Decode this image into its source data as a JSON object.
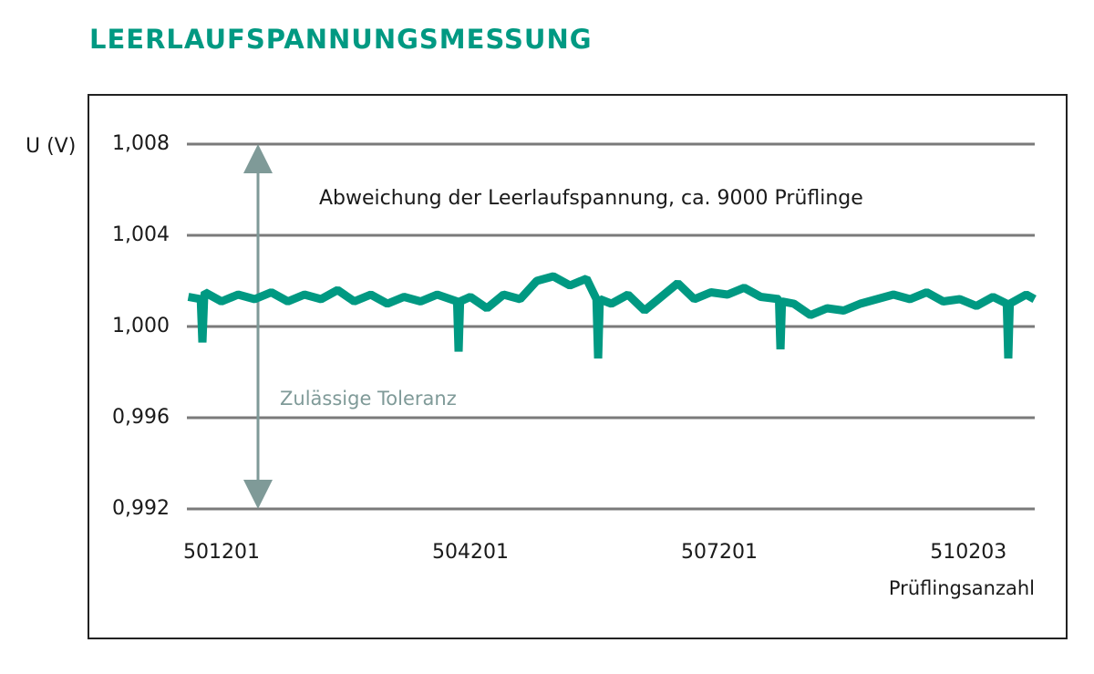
{
  "chart_data": {
    "type": "line",
    "title": "LEERLAUFSPANNUNGSMESSUNG",
    "y_label": "U (V)",
    "x_label": "Prüflingsanzahl",
    "annotation": "Abweichung der Leerlaufspannung, ca. 9000 Prüflinge",
    "tolerance_label": "Zulässige Toleranz",
    "color": "#009982",
    "tolerance_color": "#7f9a98",
    "grid": true,
    "xlim": [
      500783,
      511003
    ],
    "xticks": [
      501201,
      504201,
      507201,
      510203
    ],
    "ylim": [
      0.992,
      1.008
    ],
    "yticks": [
      {
        "value": 0.992,
        "label": "0,992"
      },
      {
        "value": 0.996,
        "label": "0,996"
      },
      {
        "value": 1.0,
        "label": "1,000"
      },
      {
        "value": 1.004,
        "label": "1,004"
      },
      {
        "value": 1.008,
        "label": "1,008"
      }
    ],
    "x": [
      500800,
      500950,
      500970,
      500990,
      501000,
      501200,
      501400,
      501600,
      501800,
      502000,
      502200,
      502400,
      502600,
      502800,
      503000,
      503200,
      503400,
      503600,
      503800,
      504040,
      504058,
      504076,
      504200,
      504400,
      504600,
      504800,
      505000,
      505200,
      505400,
      505600,
      505720,
      505740,
      505760,
      505900,
      506100,
      506300,
      506500,
      506700,
      506900,
      507100,
      507300,
      507500,
      507700,
      507920,
      507938,
      507956,
      508100,
      508300,
      508500,
      508700,
      508900,
      509100,
      509300,
      509500,
      509700,
      509900,
      510100,
      510300,
      510500,
      510666,
      510684,
      510702,
      510900,
      511000
    ],
    "values": [
      1.0013,
      1.0012,
      0.9993,
      1.0012,
      1.0015,
      1.0011,
      1.0014,
      1.0012,
      1.0015,
      1.0011,
      1.0014,
      1.0012,
      1.0016,
      1.0011,
      1.0014,
      1.001,
      1.0013,
      1.0011,
      1.0014,
      1.0011,
      0.9989,
      1.0011,
      1.0013,
      1.0008,
      1.0014,
      1.0012,
      1.002,
      1.0022,
      1.0018,
      1.0021,
      1.0012,
      0.9986,
      1.0012,
      1.001,
      1.0014,
      1.0007,
      1.0013,
      1.0019,
      1.0012,
      1.0015,
      1.0014,
      1.0017,
      1.0013,
      1.0012,
      0.999,
      1.0011,
      1.001,
      1.0005,
      1.0008,
      1.0007,
      1.001,
      1.0012,
      1.0014,
      1.0012,
      1.0015,
      1.0011,
      1.0012,
      1.0009,
      1.0013,
      1.001,
      0.9986,
      1.001,
      1.0014,
      1.0012
    ]
  }
}
